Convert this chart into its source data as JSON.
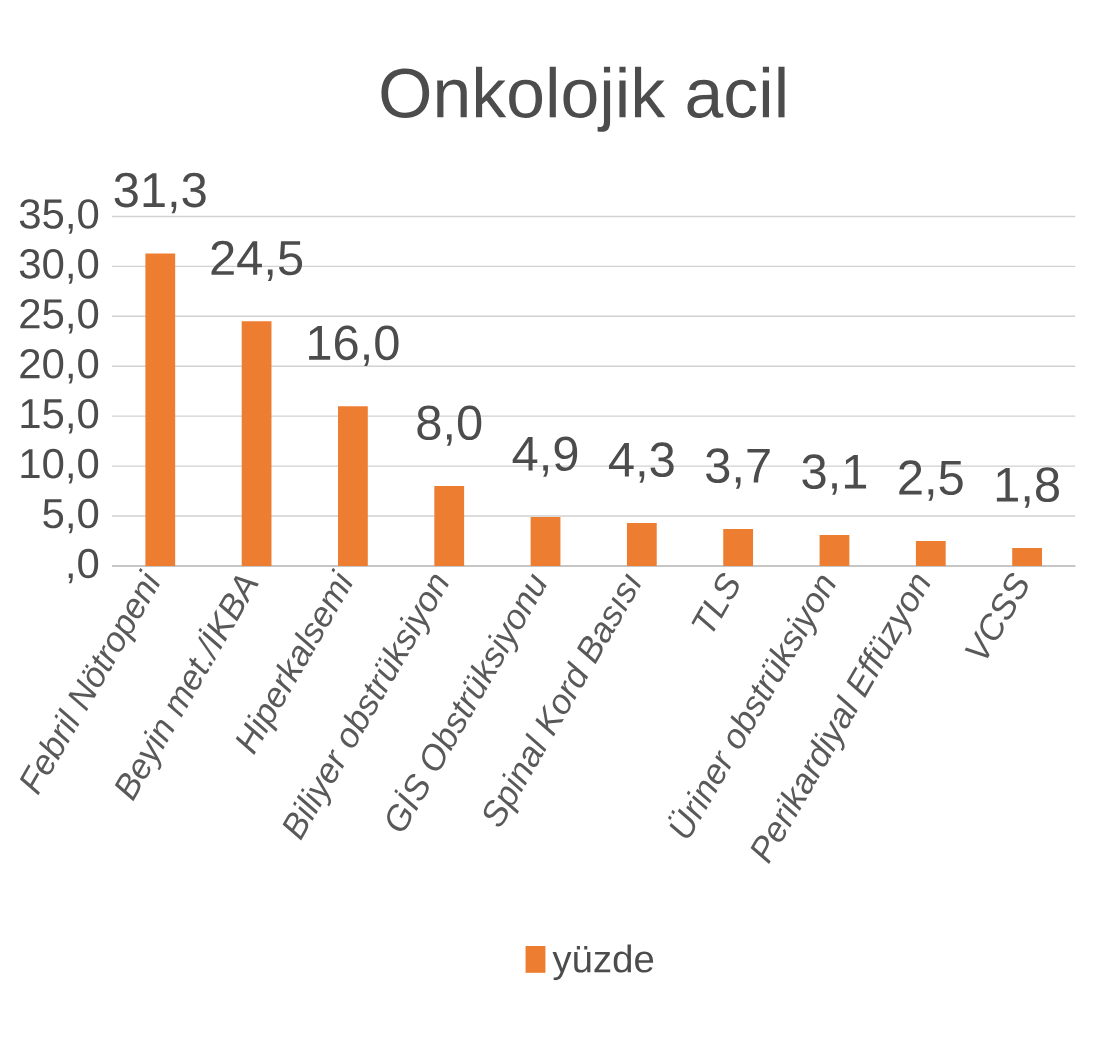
{
  "chart_data": {
    "type": "bar",
    "title": "Onkolojik acil",
    "categories": [
      "Febril Nötropeni",
      "Beyin met./İKBA",
      "Hiperkalsemi",
      "Biliyer obstrüksiyon",
      "GİS Obstrüksiyonu",
      "Spinal Kord Basısı",
      "TLS",
      "Üriner obstrüksiyon",
      "Perikardiyal Effüzyon",
      "VCSS"
    ],
    "series": [
      {
        "name": "yüzde",
        "color": "#ed7d31",
        "values": [
          31.3,
          24.5,
          16.0,
          8.0,
          4.9,
          4.3,
          3.7,
          3.1,
          2.5,
          1.8
        ],
        "value_labels": [
          "31,3",
          "24,5",
          "16,0",
          "8,0",
          "4,9",
          "4,3",
          "3,7",
          "3,1",
          "2,5",
          "1,8"
        ]
      }
    ],
    "ylim": [
      0,
      35
    ],
    "yticks": [
      {
        "value": 0,
        "label": ",0"
      },
      {
        "value": 5,
        "label": "5,0"
      },
      {
        "value": 10,
        "label": "10,0"
      },
      {
        "value": 15,
        "label": "15,0"
      },
      {
        "value": 20,
        "label": "20,0"
      },
      {
        "value": 25,
        "label": "25,0"
      },
      {
        "value": 30,
        "label": "30,0"
      },
      {
        "value": 35,
        "label": "35,0"
      }
    ],
    "grid": "y",
    "legend": "bottom"
  }
}
